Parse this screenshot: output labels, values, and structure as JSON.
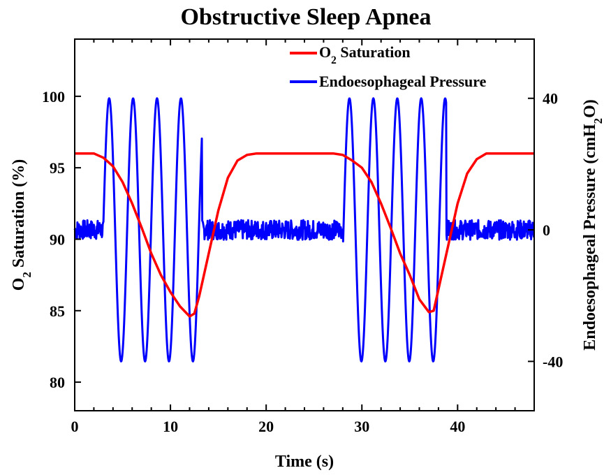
{
  "chart_data": {
    "type": "line",
    "title": "Obstructive Sleep Apnea",
    "xlabel": "Time (s)",
    "ylabel_left_parts": [
      "O",
      "2",
      " Saturation (%)"
    ],
    "ylabel_right_parts": [
      "Endoesophageal Pressure (cmH",
      "2",
      "O)"
    ],
    "xlim": [
      0,
      48
    ],
    "ylim_left": [
      78,
      104
    ],
    "ylim_right": [
      -55,
      58
    ],
    "xticks": [
      0,
      10,
      20,
      30,
      40
    ],
    "yticks_left": [
      80,
      85,
      90,
      95,
      100
    ],
    "yticks_right": [
      -40,
      0,
      40
    ],
    "grid": false,
    "legend_position": "top-right",
    "series": [
      {
        "name_parts": [
          "O",
          "2",
          " Saturation"
        ],
        "axis": "left",
        "color": "#ff0000",
        "points": [
          [
            0,
            96
          ],
          [
            1,
            96
          ],
          [
            2,
            96
          ],
          [
            3,
            95.7
          ],
          [
            4,
            95.1
          ],
          [
            5,
            94
          ],
          [
            6,
            92.5
          ],
          [
            7,
            90.8
          ],
          [
            8,
            89
          ],
          [
            9,
            87.5
          ],
          [
            10,
            86.3
          ],
          [
            11,
            85.3
          ],
          [
            12,
            84.6
          ],
          [
            12.5,
            84.8
          ],
          [
            13,
            86
          ],
          [
            14,
            89
          ],
          [
            15,
            92
          ],
          [
            16,
            94.3
          ],
          [
            17,
            95.5
          ],
          [
            18,
            95.9
          ],
          [
            19,
            96
          ],
          [
            20,
            96
          ],
          [
            21,
            96
          ],
          [
            22,
            96
          ],
          [
            23,
            96
          ],
          [
            24,
            96
          ],
          [
            25,
            96
          ],
          [
            26,
            96
          ],
          [
            27,
            96
          ],
          [
            28,
            95.9
          ],
          [
            29,
            95.5
          ],
          [
            30,
            95
          ],
          [
            31,
            94
          ],
          [
            32,
            92.5
          ],
          [
            33,
            90.8
          ],
          [
            34,
            89
          ],
          [
            35,
            87.5
          ],
          [
            36,
            85.8
          ],
          [
            37,
            84.9
          ],
          [
            37.5,
            85
          ],
          [
            38,
            86.5
          ],
          [
            39,
            89.5
          ],
          [
            40,
            92.5
          ],
          [
            41,
            94.6
          ],
          [
            42,
            95.6
          ],
          [
            43,
            96
          ],
          [
            44,
            96
          ],
          [
            46,
            96
          ],
          [
            48,
            96
          ]
        ]
      },
      {
        "name": "Endoesophageal Pressure",
        "axis": "right",
        "color": "#0000ff",
        "flat_intervals": [
          [
            0,
            3
          ],
          [
            13.3,
            28
          ],
          [
            38.8,
            48
          ]
        ],
        "oscillation_intervals": [
          [
            3,
            13.3
          ],
          [
            28,
            38.8
          ]
        ],
        "oscillation_amplitude": 40,
        "oscillation_period": 2.5,
        "noise_amplitude": 3,
        "peaks_time": [
          3.6,
          6.1,
          8.6,
          11.1,
          28.7,
          31.2,
          33.7,
          36.2
        ],
        "troughs_time": [
          4.9,
          7.4,
          9.9,
          12.4,
          30,
          32.5,
          35,
          37.5
        ]
      }
    ]
  }
}
